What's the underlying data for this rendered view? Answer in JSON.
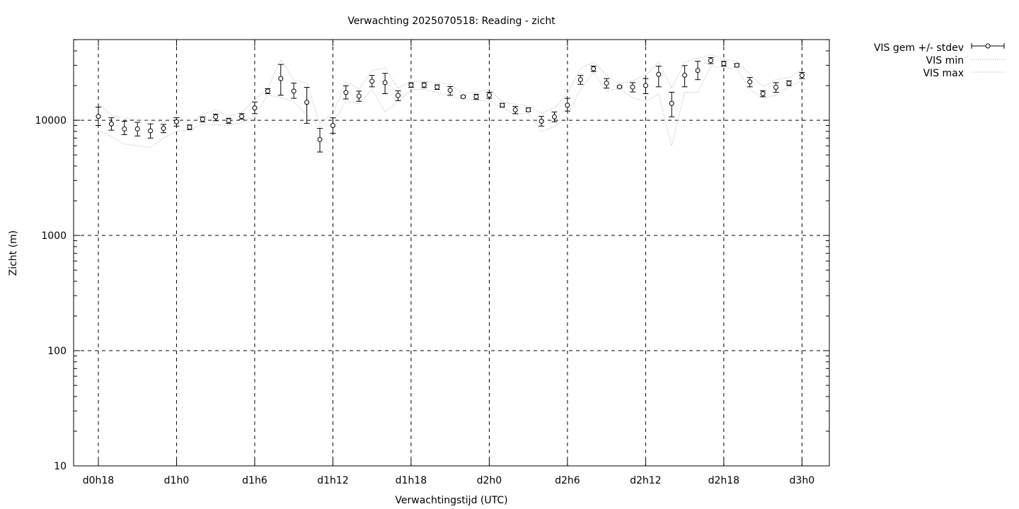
{
  "chart_data": {
    "type": "scatter",
    "title": "Verwachting 2025070518: Reading - zicht",
    "xlabel": "Verwachtingstijd (UTC)",
    "ylabel": "Zicht (m)",
    "yscale": "log",
    "ylim": [
      10,
      50000
    ],
    "xlim": [
      -1.9,
      56.1
    ],
    "yticks": [
      {
        "value": 10,
        "label": "10"
      },
      {
        "value": 100,
        "label": "100"
      },
      {
        "value": 1000,
        "label": "1000"
      },
      {
        "value": 10000,
        "label": "10000"
      }
    ],
    "xticks": [
      {
        "hour": 0,
        "label": "d0h18"
      },
      {
        "hour": 6,
        "label": "d1h0"
      },
      {
        "hour": 12,
        "label": "d1h6"
      },
      {
        "hour": 18,
        "label": "d1h12"
      },
      {
        "hour": 24,
        "label": "d1h18"
      },
      {
        "hour": 30,
        "label": "d2h0"
      },
      {
        "hour": 36,
        "label": "d2h6"
      },
      {
        "hour": 42,
        "label": "d2h12"
      },
      {
        "hour": 48,
        "label": "d2h18"
      },
      {
        "hour": 54,
        "label": "d3h0"
      }
    ],
    "grid": true,
    "legend_position": "outside-top-right",
    "legend": [
      "VIS gem +/- stdev",
      "VIS min",
      "VIS max"
    ],
    "series": [
      {
        "name": "VIS gem +/- stdev",
        "x": [
          0,
          1,
          2,
          3,
          4,
          5,
          6,
          7,
          8,
          9,
          10,
          11,
          12,
          13,
          14,
          15,
          16,
          17,
          18,
          19,
          20,
          21,
          22,
          23,
          24,
          25,
          26,
          27,
          28,
          29,
          30,
          31,
          32,
          33,
          34,
          35,
          36,
          37,
          38,
          39,
          40,
          41,
          42,
          43,
          44,
          45,
          46,
          47,
          48,
          49,
          50,
          51,
          52,
          53,
          54
        ],
        "mean": [
          10800,
          9300,
          8400,
          8400,
          8100,
          8500,
          9700,
          8700,
          10200,
          10700,
          9900,
          10800,
          12800,
          17900,
          23000,
          17900,
          14300,
          6800,
          9000,
          17400,
          16200,
          21800,
          21200,
          16400,
          20200,
          20200,
          19400,
          18200,
          16000,
          16000,
          16500,
          13500,
          12300,
          12300,
          9800,
          10700,
          13500,
          22500,
          28000,
          21000,
          19500,
          19400,
          20000,
          25000,
          14000,
          24600,
          27000,
          33000,
          31000,
          30000,
          21500,
          17000,
          19300,
          21000,
          24500
        ],
        "stdev_low": [
          9000,
          8200,
          7500,
          7300,
          7000,
          7800,
          8900,
          8300,
          9700,
          9900,
          9400,
          10200,
          11400,
          17000,
          16500,
          15500,
          9400,
          5300,
          7700,
          15300,
          14600,
          19500,
          17000,
          14800,
          19300,
          19200,
          18500,
          16500,
          15700,
          15200,
          15500,
          13000,
          11400,
          11900,
          8900,
          9700,
          12000,
          20500,
          26500,
          19000,
          19100,
          17600,
          17000,
          19500,
          10700,
          19500,
          22500,
          31000,
          29500,
          29000,
          19500,
          16000,
          17500,
          20000,
          23000
        ],
        "stdev_high": [
          13000,
          10500,
          9800,
          9600,
          9300,
          9200,
          10500,
          9100,
          10700,
          11300,
          10400,
          11400,
          14400,
          18800,
          30500,
          21000,
          19300,
          8500,
          10500,
          19900,
          17900,
          24500,
          25500,
          18000,
          21100,
          21200,
          20300,
          19600,
          16400,
          16800,
          17500,
          14000,
          13200,
          12800,
          10800,
          11800,
          15500,
          24500,
          29500,
          23000,
          19900,
          21200,
          23000,
          29500,
          17500,
          29800,
          32500,
          35000,
          32500,
          31000,
          23500,
          18000,
          21200,
          22000,
          26000
        ],
        "marker": "open-circle",
        "color": "#000000"
      },
      {
        "name": "VIS min",
        "x": [
          0,
          1,
          2,
          3,
          4,
          5,
          6,
          7,
          8,
          9,
          10,
          11,
          12,
          13,
          14,
          15,
          16,
          17,
          18,
          19,
          20,
          21,
          22,
          23,
          24,
          25,
          26,
          27,
          28,
          29,
          30,
          31,
          32,
          33,
          34,
          35,
          36,
          37,
          38,
          39,
          40,
          41,
          42,
          43,
          44,
          45,
          46,
          47,
          48,
          49,
          50,
          51,
          52,
          53,
          54
        ],
        "values": [
          8200,
          7200,
          6200,
          6000,
          5800,
          7000,
          8000,
          8200,
          9200,
          9200,
          9000,
          9600,
          11000,
          16500,
          15800,
          14500,
          11000,
          8800,
          9500,
          14500,
          14000,
          18500,
          11800,
          14500,
          18500,
          18500,
          17500,
          16000,
          15300,
          14800,
          14800,
          12800,
          11200,
          11500,
          8000,
          8800,
          11000,
          18500,
          26000,
          18000,
          18700,
          15800,
          14500,
          17000,
          6000,
          17500,
          17500,
          29500,
          28500,
          28000,
          18500,
          15500,
          16500,
          19500,
          22000
        ],
        "color": "#aaaaaa",
        "style": "dotted"
      },
      {
        "name": "VIS max",
        "x": [
          0,
          1,
          2,
          3,
          4,
          5,
          6,
          7,
          8,
          9,
          10,
          11,
          12,
          13,
          14,
          15,
          16,
          17,
          18,
          19,
          20,
          21,
          22,
          23,
          24,
          25,
          26,
          27,
          28,
          29,
          30,
          31,
          32,
          33,
          34,
          35,
          36,
          37,
          38,
          39,
          40,
          41,
          42,
          43,
          44,
          45,
          46,
          47,
          48,
          49,
          50,
          51,
          52,
          53,
          54
        ],
        "values": [
          14000,
          11000,
          10500,
          10000,
          10000,
          9500,
          11000,
          9200,
          11300,
          12300,
          10800,
          11700,
          15000,
          19000,
          33500,
          22500,
          21000,
          9300,
          11500,
          21500,
          18700,
          27000,
          28500,
          19000,
          21800,
          21800,
          21000,
          20500,
          17000,
          17500,
          18500,
          14500,
          13800,
          13300,
          11500,
          12800,
          17000,
          28000,
          32000,
          24500,
          20500,
          22000,
          24500,
          32000,
          19000,
          32000,
          34500,
          37000,
          34000,
          32500,
          25000,
          19500,
          22500,
          23500,
          27500
        ],
        "color": "#aaaaaa",
        "style": "dotted"
      }
    ]
  }
}
